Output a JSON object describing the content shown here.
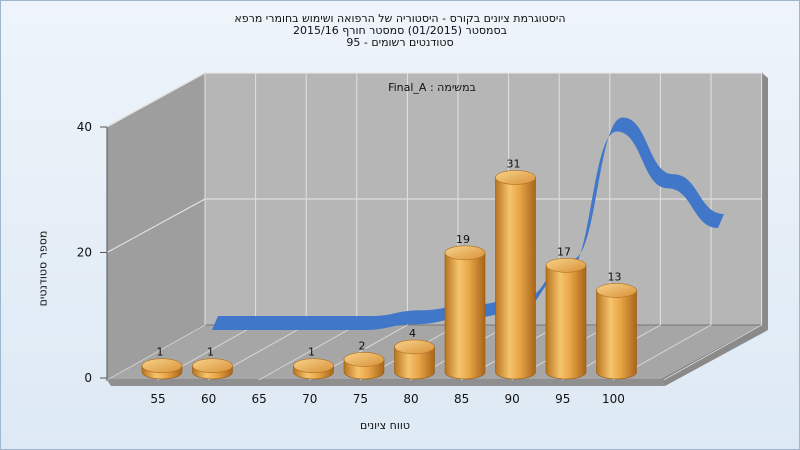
{
  "header": {
    "title_line1": "היסטוגרמת ציונים בקורס - היסטוריה של הרפואה ושימוש בחומרי מרפא",
    "title_line2": "בסמסטר  (01/2015)  סמסטר חורף  2015/16",
    "title_line3": "סטודנטים רשומים - 95"
  },
  "chart_data": {
    "type": "bar",
    "title": "היסטוגרמת ציונים בקורס - היסטוריה של הרפואה ושימוש בחומרי מרפא",
    "subtitle": "בסמסטר  (01/2015)  סמסטר חורף  2015/16 / סטודנטים רשומים - 95",
    "annotation": "במשימה : Final_A",
    "xlabel": "טווח ציונים",
    "ylabel": "מספר סטודנטים",
    "categories": [
      "55",
      "60",
      "65",
      "70",
      "75",
      "80",
      "85",
      "90",
      "95",
      "100"
    ],
    "values": [
      1,
      1,
      0,
      1,
      2,
      4,
      19,
      31,
      17,
      13
    ],
    "y_ticks": [
      0,
      20,
      40
    ],
    "ylim": [
      0,
      40
    ],
    "curve_values": [
      0,
      0,
      0,
      0,
      1,
      2,
      3,
      10,
      35,
      25,
      18
    ],
    "grid": true,
    "bar_color": "#e6a444",
    "curve_color": "#3a74c9",
    "wall_color": "#b4b4b4"
  }
}
